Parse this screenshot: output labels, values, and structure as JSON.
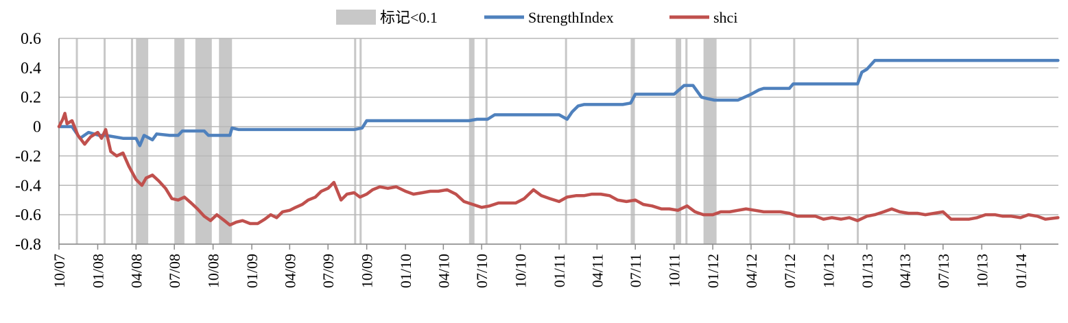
{
  "chart_data": {
    "type": "line",
    "title": "",
    "xlabel": "",
    "ylabel": "",
    "ylim": [
      -0.8,
      0.6
    ],
    "yticks": [
      "0.6",
      "0.4",
      "0.2",
      "0",
      "-0.2",
      "-0.4",
      "-0.6",
      "-0.8"
    ],
    "xticks": [
      "10/07",
      "01/08",
      "04/08",
      "07/08",
      "10/08",
      "01/09",
      "04/09",
      "07/09",
      "10/09",
      "01/10",
      "04/10",
      "07/10",
      "10/10",
      "01/11",
      "04/11",
      "07/11",
      "10/11",
      "01/12",
      "04/12",
      "07/12",
      "10/12",
      "01/13",
      "04/13",
      "07/13",
      "10/13",
      "01/14"
    ],
    "grid": "horizontal",
    "legend_position": "top",
    "legend": [
      {
        "label": "标记<0.1",
        "kind": "band",
        "color": "#c8c8c8"
      },
      {
        "label": "StrengthIndex",
        "kind": "line",
        "color": "#4f81bd"
      },
      {
        "label": "shci",
        "kind": "line",
        "color": "#c0504d"
      }
    ],
    "marker_bands": [
      {
        "start": "2007-11-10",
        "end": "2007-11-14"
      },
      {
        "start": "2008-01-15",
        "end": "2008-01-18"
      },
      {
        "start": "2008-03-20",
        "end": "2008-03-25"
      },
      {
        "start": "2008-04-01",
        "end": "2008-04-30"
      },
      {
        "start": "2008-07-01",
        "end": "2008-07-25"
      },
      {
        "start": "2008-08-20",
        "end": "2008-09-28"
      },
      {
        "start": "2008-10-15",
        "end": "2008-11-15"
      },
      {
        "start": "2009-09-01",
        "end": "2009-09-06"
      },
      {
        "start": "2009-09-14",
        "end": "2009-09-19"
      },
      {
        "start": "2010-06-01",
        "end": "2010-06-14"
      },
      {
        "start": "2010-07-10",
        "end": "2010-07-15"
      },
      {
        "start": "2011-01-15",
        "end": "2011-01-19"
      },
      {
        "start": "2011-06-20",
        "end": "2011-06-30"
      },
      {
        "start": "2011-10-05",
        "end": "2011-10-18"
      },
      {
        "start": "2011-10-28",
        "end": "2011-11-02"
      },
      {
        "start": "2011-12-10",
        "end": "2012-01-10"
      },
      {
        "start": "2012-03-28",
        "end": "2012-04-01"
      },
      {
        "start": "2012-07-10",
        "end": "2012-07-13"
      },
      {
        "start": "2012-12-08",
        "end": "2012-12-13"
      }
    ],
    "series": [
      {
        "name": "StrengthIndex",
        "color": "#4f81bd",
        "x": [
          "2007-10-01",
          "2007-11-01",
          "2007-11-20",
          "2007-12-10",
          "2008-01-05",
          "2008-01-20",
          "2008-03-01",
          "2008-04-01",
          "2008-04-10",
          "2008-04-20",
          "2008-05-10",
          "2008-05-20",
          "2008-06-20",
          "2008-07-10",
          "2008-07-20",
          "2008-08-20",
          "2008-09-10",
          "2008-09-20",
          "2008-10-15",
          "2008-11-10",
          "2008-11-15",
          "2008-12-01",
          "2009-06-01",
          "2009-09-01",
          "2009-09-20",
          "2009-10-01",
          "2010-01-01",
          "2010-06-01",
          "2010-06-20",
          "2010-07-15",
          "2010-08-01",
          "2011-01-01",
          "2011-01-20",
          "2011-02-01",
          "2011-02-15",
          "2011-03-01",
          "2011-06-01",
          "2011-06-20",
          "2011-07-01",
          "2011-10-01",
          "2011-10-25",
          "2011-11-15",
          "2011-12-05",
          "2011-12-20",
          "2012-01-05",
          "2012-02-01",
          "2012-03-01",
          "2012-04-01",
          "2012-04-20",
          "2012-05-01",
          "2012-07-01",
          "2012-07-10",
          "2012-08-01",
          "2012-12-10",
          "2012-12-20",
          "2013-01-01",
          "2013-01-20",
          "2013-03-01",
          "2014-03-31"
        ],
        "values": [
          0.0,
          0.0,
          -0.08,
          -0.04,
          -0.06,
          -0.06,
          -0.08,
          -0.08,
          -0.13,
          -0.06,
          -0.09,
          -0.05,
          -0.06,
          -0.06,
          -0.03,
          -0.03,
          -0.03,
          -0.06,
          -0.06,
          -0.06,
          -0.01,
          -0.02,
          -0.02,
          -0.02,
          -0.01,
          0.04,
          0.04,
          0.04,
          0.05,
          0.05,
          0.08,
          0.08,
          0.05,
          0.1,
          0.14,
          0.15,
          0.15,
          0.16,
          0.22,
          0.22,
          0.28,
          0.28,
          0.2,
          0.19,
          0.18,
          0.18,
          0.18,
          0.22,
          0.25,
          0.26,
          0.26,
          0.29,
          0.29,
          0.29,
          0.37,
          0.39,
          0.45,
          0.45,
          0.45
        ]
      },
      {
        "name": "shci",
        "color": "#c0504d",
        "x": [
          "2007-10-01",
          "2007-10-10",
          "2007-10-15",
          "2007-10-20",
          "2007-11-01",
          "2007-11-15",
          "2007-12-01",
          "2007-12-15",
          "2008-01-01",
          "2008-01-10",
          "2008-01-20",
          "2008-02-01",
          "2008-02-15",
          "2008-03-01",
          "2008-03-15",
          "2008-04-01",
          "2008-04-15",
          "2008-04-25",
          "2008-05-10",
          "2008-05-25",
          "2008-06-10",
          "2008-06-25",
          "2008-07-10",
          "2008-07-25",
          "2008-08-10",
          "2008-08-25",
          "2008-09-10",
          "2008-09-25",
          "2008-10-10",
          "2008-10-28",
          "2008-11-10",
          "2008-11-25",
          "2008-12-10",
          "2008-12-28",
          "2009-01-15",
          "2009-02-01",
          "2009-02-15",
          "2009-03-01",
          "2009-03-15",
          "2009-04-01",
          "2009-04-15",
          "2009-05-01",
          "2009-05-15",
          "2009-06-01",
          "2009-06-15",
          "2009-07-01",
          "2009-07-15",
          "2009-08-01",
          "2009-08-15",
          "2009-09-01",
          "2009-09-15",
          "2009-10-01",
          "2009-10-15",
          "2009-11-01",
          "2009-11-20",
          "2009-12-10",
          "2010-01-01",
          "2010-01-20",
          "2010-02-10",
          "2010-03-01",
          "2010-03-20",
          "2010-04-10",
          "2010-05-01",
          "2010-05-20",
          "2010-06-10",
          "2010-07-01",
          "2010-07-20",
          "2010-08-10",
          "2010-09-01",
          "2010-09-20",
          "2010-10-10",
          "2010-11-01",
          "2010-11-20",
          "2010-12-10",
          "2011-01-01",
          "2011-01-20",
          "2011-02-10",
          "2011-03-01",
          "2011-03-20",
          "2011-04-10",
          "2011-05-01",
          "2011-05-20",
          "2011-06-10",
          "2011-07-01",
          "2011-07-20",
          "2011-08-10",
          "2011-09-01",
          "2011-09-20",
          "2011-10-10",
          "2011-11-01",
          "2011-11-20",
          "2011-12-10",
          "2012-01-01",
          "2012-01-20",
          "2012-02-10",
          "2012-03-01",
          "2012-03-20",
          "2012-04-10",
          "2012-05-01",
          "2012-05-20",
          "2012-06-10",
          "2012-07-01",
          "2012-07-20",
          "2012-08-10",
          "2012-09-01",
          "2012-09-20",
          "2012-10-10",
          "2012-11-01",
          "2012-11-20",
          "2012-12-10",
          "2013-01-01",
          "2013-01-20",
          "2013-02-10",
          "2013-03-01",
          "2013-03-20",
          "2013-04-10",
          "2013-05-01",
          "2013-05-20",
          "2013-06-10",
          "2013-07-01",
          "2013-07-20",
          "2013-08-10",
          "2013-09-01",
          "2013-09-20",
          "2013-10-10",
          "2013-11-01",
          "2013-11-20",
          "2013-12-10",
          "2014-01-01",
          "2014-01-20",
          "2014-02-10",
          "2014-03-01",
          "2014-03-31"
        ],
        "values": [
          0.0,
          0.05,
          0.09,
          0.02,
          0.04,
          -0.06,
          -0.12,
          -0.07,
          -0.04,
          -0.08,
          -0.02,
          -0.17,
          -0.2,
          -0.18,
          -0.27,
          -0.36,
          -0.4,
          -0.35,
          -0.33,
          -0.37,
          -0.42,
          -0.49,
          -0.5,
          -0.48,
          -0.52,
          -0.56,
          -0.61,
          -0.64,
          -0.6,
          -0.64,
          -0.67,
          -0.65,
          -0.64,
          -0.66,
          -0.66,
          -0.63,
          -0.6,
          -0.62,
          -0.58,
          -0.57,
          -0.55,
          -0.53,
          -0.5,
          -0.48,
          -0.44,
          -0.42,
          -0.38,
          -0.5,
          -0.46,
          -0.45,
          -0.48,
          -0.46,
          -0.43,
          -0.41,
          -0.42,
          -0.41,
          -0.44,
          -0.46,
          -0.45,
          -0.44,
          -0.44,
          -0.43,
          -0.46,
          -0.51,
          -0.53,
          -0.55,
          -0.54,
          -0.52,
          -0.52,
          -0.52,
          -0.49,
          -0.43,
          -0.47,
          -0.49,
          -0.51,
          -0.48,
          -0.47,
          -0.47,
          -0.46,
          -0.46,
          -0.47,
          -0.5,
          -0.51,
          -0.5,
          -0.53,
          -0.54,
          -0.56,
          -0.56,
          -0.57,
          -0.54,
          -0.58,
          -0.6,
          -0.6,
          -0.58,
          -0.58,
          -0.57,
          -0.56,
          -0.57,
          -0.58,
          -0.58,
          -0.58,
          -0.59,
          -0.61,
          -0.61,
          -0.61,
          -0.63,
          -0.62,
          -0.63,
          -0.62,
          -0.64,
          -0.61,
          -0.6,
          -0.58,
          -0.56,
          -0.58,
          -0.59,
          -0.59,
          -0.6,
          -0.59,
          -0.58,
          -0.63,
          -0.63,
          -0.63,
          -0.62,
          -0.6,
          -0.6,
          -0.61,
          -0.61,
          -0.62,
          -0.6,
          -0.61,
          -0.63,
          -0.62
        ]
      }
    ]
  }
}
